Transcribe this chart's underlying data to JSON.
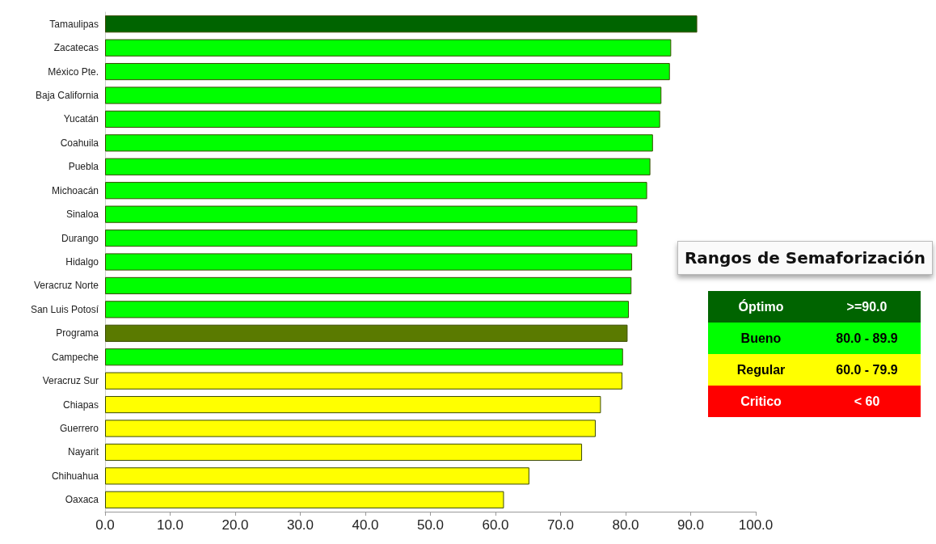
{
  "chart_data": {
    "type": "bar",
    "orientation": "horizontal",
    "categories": [
      "Tamaulipas",
      "Zacatecas",
      "México Pte.",
      "Baja California",
      "Yucatán",
      "Coahuila",
      "Puebla",
      "Michoacán",
      "Sinaloa",
      "Durango",
      "Hidalgo",
      "Veracruz Norte",
      "San Luis Potosí",
      "Programa",
      "Campeche",
      "Veracruz Sur",
      "Chiapas",
      "Guerrero",
      "Nayarit",
      "Chihuahua",
      "Oaxaca"
    ],
    "values": [
      91.0,
      87.0,
      86.8,
      85.5,
      85.3,
      84.2,
      83.8,
      83.3,
      81.8,
      81.8,
      81.0,
      80.9,
      80.5,
      80.3,
      79.6,
      79.5,
      76.2,
      75.4,
      73.3,
      65.2,
      61.3
    ],
    "colors": [
      "#006400",
      "#00ff00",
      "#00ff00",
      "#00ff00",
      "#00ff00",
      "#00ff00",
      "#00ff00",
      "#00ff00",
      "#00ff00",
      "#00ff00",
      "#00ff00",
      "#00ff00",
      "#00ff00",
      "#5a7a00",
      "#00ff00",
      "#ffff00",
      "#ffff00",
      "#ffff00",
      "#ffff00",
      "#ffff00",
      "#ffff00"
    ],
    "xlim": [
      0,
      100
    ],
    "xticks": [
      {
        "value": 0,
        "label": "0.0"
      },
      {
        "value": 10,
        "label": "10.0"
      },
      {
        "value": 20,
        "label": "20.0"
      },
      {
        "value": 30,
        "label": "30.0"
      },
      {
        "value": 40,
        "label": "40.0"
      },
      {
        "value": 50,
        "label": "50.0"
      },
      {
        "value": 60,
        "label": "60.0"
      },
      {
        "value": 70,
        "label": "70.0"
      },
      {
        "value": 80,
        "label": "80.0"
      },
      {
        "value": 90,
        "label": "90.0"
      },
      {
        "value": 100,
        "label": "100.0"
      }
    ],
    "grid": false,
    "legend_title": "Rangos de Semaforización",
    "annotations": [
      "Óptimo",
      ">=90.0",
      "Bueno",
      "80.0 - 89.9",
      "Regular",
      "60.0 - 79.9",
      "Critico",
      "< 60"
    ]
  }
}
